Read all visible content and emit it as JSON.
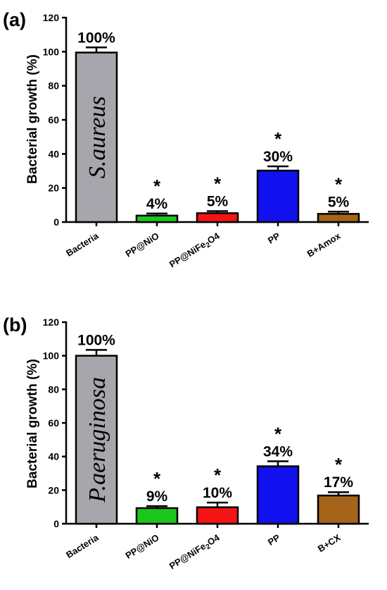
{
  "chart_data": [
    {
      "type": "bar",
      "panel_label": "(a)",
      "ylabel": "Bacterial growth (%)",
      "ylim": [
        0,
        120
      ],
      "yticks": [
        "0",
        "20",
        "40",
        "60",
        "80",
        "100",
        "120"
      ],
      "categories": [
        {
          "text": "Bacteria",
          "sub": "",
          "tail": ""
        },
        {
          "text": "PP@NiO",
          "sub": "",
          "tail": ""
        },
        {
          "text": "PP@NiFe",
          "sub": "2",
          "tail": "O4"
        },
        {
          "text": "PP",
          "sub": "",
          "tail": ""
        },
        {
          "text": "B+Amox",
          "sub": "",
          "tail": ""
        }
      ],
      "values": [
        99.5,
        3.8,
        5.2,
        30.2,
        4.8
      ],
      "errors": [
        3,
        1.2,
        1.2,
        2.5,
        1.3
      ],
      "labels": [
        "100%",
        "4%",
        "5%",
        "30%",
        "5%"
      ],
      "stars": [
        "",
        "*",
        "*",
        "*",
        "*"
      ],
      "colors": [
        "#a7a6ac",
        "#1bc71b",
        "#f51414",
        "#1111ef",
        "#a4651a"
      ],
      "inner_text": "S.aureus",
      "grid": false
    },
    {
      "type": "bar",
      "panel_label": "(b)",
      "ylabel": "Bacterial growth (%)",
      "ylim": [
        0,
        120
      ],
      "yticks": [
        "0",
        "20",
        "40",
        "60",
        "80",
        "100",
        "120"
      ],
      "categories": [
        {
          "text": "Bacteria",
          "sub": "",
          "tail": ""
        },
        {
          "text": "PP@NiO",
          "sub": "",
          "tail": ""
        },
        {
          "text": "PP@NiFe",
          "sub": "2",
          "tail": "O4"
        },
        {
          "text": "PP",
          "sub": "",
          "tail": ""
        },
        {
          "text": "B+CX",
          "sub": "",
          "tail": ""
        }
      ],
      "values": [
        100,
        9.3,
        9.8,
        34.2,
        16.8
      ],
      "errors": [
        3.5,
        1.2,
        2.8,
        3,
        2
      ],
      "labels": [
        "100%",
        "9%",
        "10%",
        "34%",
        "17%"
      ],
      "stars": [
        "",
        "*",
        "*",
        "*",
        "*"
      ],
      "colors": [
        "#a7a6ac",
        "#1bc71b",
        "#f51414",
        "#1111ef",
        "#a4651a"
      ],
      "inner_text": "P.aeruginosa",
      "grid": false
    }
  ]
}
